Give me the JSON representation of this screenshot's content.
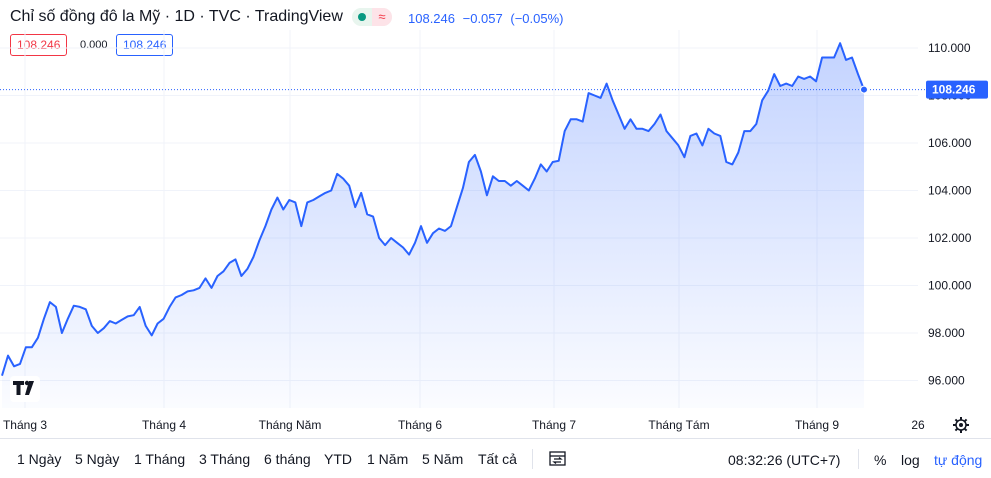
{
  "header": {
    "title": "Chỉ số đồng đô la Mỹ · 1D · TVC · TradingView",
    "status_icon": "≈",
    "last_price": "108.246",
    "change": "−0.057",
    "change_pct": "(−0.05%)",
    "bid": "108.246",
    "spread": "0.000",
    "ask": "108.246"
  },
  "chart_data": {
    "type": "area",
    "title": "",
    "xlabel": "",
    "ylabel": "",
    "ylim": [
      95.0,
      111.0
    ],
    "y_ticks": [
      "96.000",
      "98.000",
      "100.000",
      "102.000",
      "104.000",
      "106.000",
      "108.000",
      "110.000"
    ],
    "y_tick_values": [
      96,
      98,
      100,
      102,
      104,
      106,
      108,
      110
    ],
    "x_ticks": [
      "Tháng 3",
      "Tháng 4",
      "Tháng Năm",
      "Tháng 6",
      "Tháng 7",
      "Tháng Tám",
      "Tháng 9",
      "26"
    ],
    "x_tick_days": [
      0,
      31,
      61,
      92,
      122,
      153,
      184,
      209
    ],
    "x_range_days": [
      -1,
      229
    ],
    "last_value_label": "108.246",
    "last_value": 108.246,
    "series": [
      {
        "values": [
          96.2,
          97.05,
          96.6,
          96.7,
          97.4,
          97.4,
          97.8,
          98.6,
          99.3,
          99.1,
          98.0,
          98.6,
          99.15,
          99.1,
          99.0,
          98.3,
          98.0,
          98.2,
          98.5,
          98.4,
          98.55,
          98.7,
          98.75,
          99.1,
          98.3,
          97.9,
          98.4,
          98.6,
          99.1,
          99.5,
          99.6,
          99.75,
          99.8,
          99.9,
          100.3,
          99.9,
          100.4,
          100.6,
          100.95,
          101.1,
          100.4,
          100.7,
          101.2,
          101.9,
          102.5,
          103.2,
          103.7,
          103.2,
          103.6,
          103.5,
          102.5,
          103.5,
          103.6,
          103.75,
          103.9,
          104.0,
          104.7,
          104.5,
          104.2,
          103.3,
          103.9,
          103.0,
          102.9,
          102.0,
          101.7,
          102.0,
          101.8,
          101.6,
          101.3,
          101.8,
          102.5,
          101.8,
          102.2,
          102.4,
          102.3,
          102.5,
          103.3,
          104.1,
          105.2,
          105.5,
          104.8,
          103.8,
          104.6,
          104.4,
          104.4,
          104.2,
          104.4,
          104.2,
          104.0,
          104.5,
          105.1,
          104.8,
          105.2,
          105.25,
          106.5,
          107.0,
          107.0,
          106.9,
          108.1,
          108.0,
          107.9,
          108.5,
          107.8,
          107.2,
          106.6,
          107.0,
          106.6,
          106.6,
          106.5,
          106.8,
          107.2,
          106.5,
          106.2,
          105.9,
          105.4,
          106.3,
          106.4,
          105.9,
          106.6,
          106.4,
          106.3,
          105.2,
          105.1,
          105.6,
          106.5,
          106.5,
          106.8,
          107.8,
          108.2,
          108.9,
          108.4,
          108.5,
          108.4,
          108.8,
          108.7,
          108.8,
          108.6,
          109.6,
          109.6,
          109.6,
          110.2,
          109.5,
          109.6,
          108.9,
          108.25
        ]
      }
    ],
    "colors": {
      "line": "#2962ff",
      "fill": "#2962ff",
      "grid": "#f0f3fa",
      "axis_text": "#131722",
      "price_label_bg": "#2962ff"
    },
    "grid": true
  },
  "toolbar": {
    "ranges": [
      "1 Ngày",
      "5 Ngày",
      "1 Tháng",
      "3 Tháng",
      "6 tháng",
      "YTD",
      "1 Năm",
      "5 Năm",
      "Tất cả"
    ],
    "clock": "08:32:26 (UTC+7)",
    "percent": "%",
    "log": "log",
    "auto": "tự động"
  },
  "logo": "TV"
}
